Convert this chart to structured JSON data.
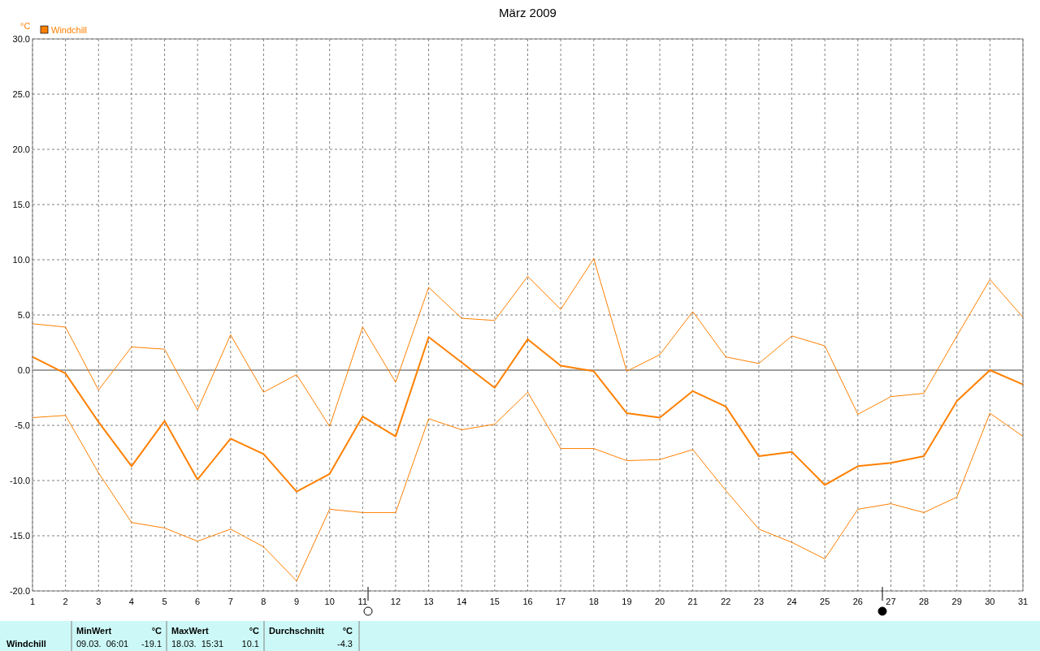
{
  "chart_data": {
    "type": "line",
    "title": "März 2009",
    "ylabel": "°C",
    "x": [
      1,
      2,
      3,
      4,
      5,
      6,
      7,
      8,
      9,
      10,
      11,
      12,
      13,
      14,
      15,
      16,
      17,
      18,
      19,
      20,
      21,
      22,
      23,
      24,
      25,
      26,
      27,
      28,
      29,
      30,
      31
    ],
    "xlim": [
      1,
      31
    ],
    "xticks": [
      1,
      2,
      3,
      4,
      5,
      6,
      7,
      8,
      9,
      10,
      11,
      12,
      13,
      14,
      15,
      16,
      17,
      18,
      19,
      20,
      21,
      22,
      23,
      24,
      25,
      26,
      27,
      28,
      29,
      30,
      31
    ],
    "ylim": [
      -20,
      30
    ],
    "yticks": [
      {
        "value": -20,
        "label": "-20.0"
      },
      {
        "value": -15,
        "label": "-15.0"
      },
      {
        "value": -10,
        "label": "-10.0"
      },
      {
        "value": -5,
        "label": "-5.0"
      },
      {
        "value": 0,
        "label": "0.0"
      },
      {
        "value": 5,
        "label": "5.0"
      },
      {
        "value": 10,
        "label": "10.0"
      },
      {
        "value": 15,
        "label": "15.0"
      },
      {
        "value": 20,
        "label": "20.0"
      },
      {
        "value": 25,
        "label": "25.0"
      },
      {
        "value": 30,
        "label": "30.0"
      }
    ],
    "series": [
      {
        "color": "#ff8000",
        "values": [
          4.2,
          3.9,
          -1.8,
          2.1,
          1.9,
          -3.6,
          3.2,
          -2.0,
          -0.4,
          -5.1,
          3.9,
          -1.1,
          7.5,
          4.7,
          4.5,
          8.5,
          5.5,
          10.1,
          -0.1,
          1.4,
          5.3,
          1.2,
          0.6,
          3.1,
          2.2,
          -4.0,
          -2.4,
          -2.1,
          3.1,
          8.2,
          4.8
        ]
      },
      {
        "name": "Windchill",
        "color": "#ff8000",
        "values": [
          1.2,
          -0.3,
          -4.7,
          -8.7,
          -4.6,
          -9.9,
          -6.2,
          -7.6,
          -11.0,
          -9.4,
          -4.2,
          -6.0,
          3.0,
          0.7,
          -1.6,
          2.8,
          0.4,
          -0.1,
          -3.9,
          -4.3,
          -1.9,
          -3.3,
          -7.8,
          -7.4,
          -10.4,
          -8.7,
          -8.4,
          -7.8,
          -2.8,
          0.0,
          -1.3
        ]
      },
      {
        "color": "#ff8000",
        "values": [
          -4.3,
          -4.1,
          -9.3,
          -13.8,
          -14.3,
          -15.5,
          -14.4,
          -16.0,
          -19.1,
          -12.6,
          -12.9,
          -12.9,
          -4.4,
          -5.4,
          -4.9,
          -2.0,
          -7.1,
          -7.1,
          -8.2,
          -8.1,
          -7.2,
          -10.9,
          -14.4,
          -15.6,
          -17.1,
          -12.6,
          -12.1,
          -12.9,
          -11.5,
          -3.9,
          -6.0
        ]
      }
    ],
    "ref_lines": [
      {
        "axis": "y",
        "value": 0,
        "color": "#a0a0a0"
      }
    ],
    "grid": true,
    "line_style": "solid",
    "legend": "top left",
    "annotations": [
      "Windchill",
      "MinWert",
      "°C",
      "09.03.  06:01",
      "-19.1",
      "MaxWert",
      "°C",
      "18.03.  15:31",
      "10.1",
      "Durchschnitt",
      "°C",
      "-4.3"
    ]
  }
}
